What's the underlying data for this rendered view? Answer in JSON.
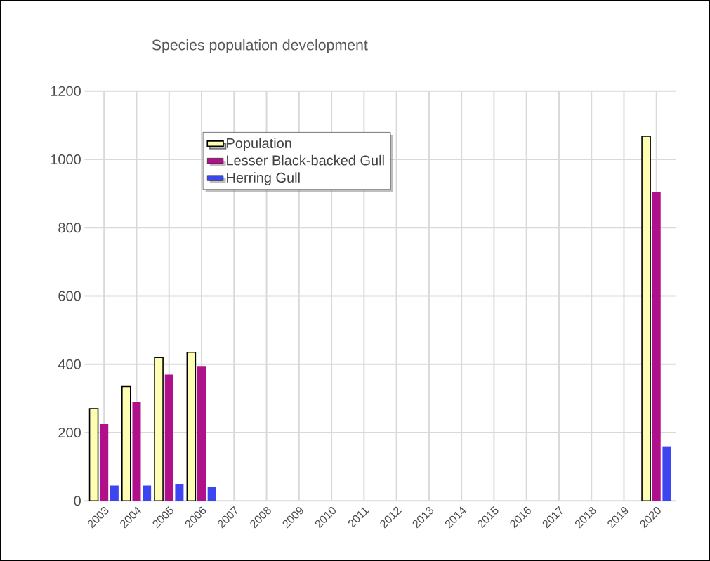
{
  "chart_data": {
    "type": "bar",
    "title": "Species population development",
    "categories": [
      "2003",
      "2004",
      "2005",
      "2006",
      "2007",
      "2008",
      "2009",
      "2010",
      "2011",
      "2012",
      "2013",
      "2014",
      "2015",
      "2016",
      "2017",
      "2018",
      "2019",
      "2020"
    ],
    "series": [
      {
        "name": "Population",
        "color": "#ffffb3",
        "values": [
          270,
          335,
          420,
          435,
          null,
          null,
          null,
          null,
          null,
          null,
          null,
          null,
          null,
          null,
          null,
          null,
          null,
          1068
        ]
      },
      {
        "name": "Lesser Black-backed Gull",
        "color": "#b0108a",
        "values": [
          225,
          290,
          370,
          395,
          null,
          null,
          null,
          null,
          null,
          null,
          null,
          null,
          null,
          null,
          null,
          null,
          null,
          905
        ]
      },
      {
        "name": "Herring Gull",
        "color": "#3c46f0",
        "values": [
          45,
          45,
          50,
          40,
          null,
          null,
          null,
          null,
          null,
          null,
          null,
          null,
          null,
          null,
          null,
          null,
          null,
          160
        ]
      }
    ],
    "ylim": [
      0,
      1200
    ],
    "yticks": [
      0,
      200,
      400,
      600,
      800,
      1000,
      1200
    ],
    "grid": true,
    "legend": "top left"
  }
}
